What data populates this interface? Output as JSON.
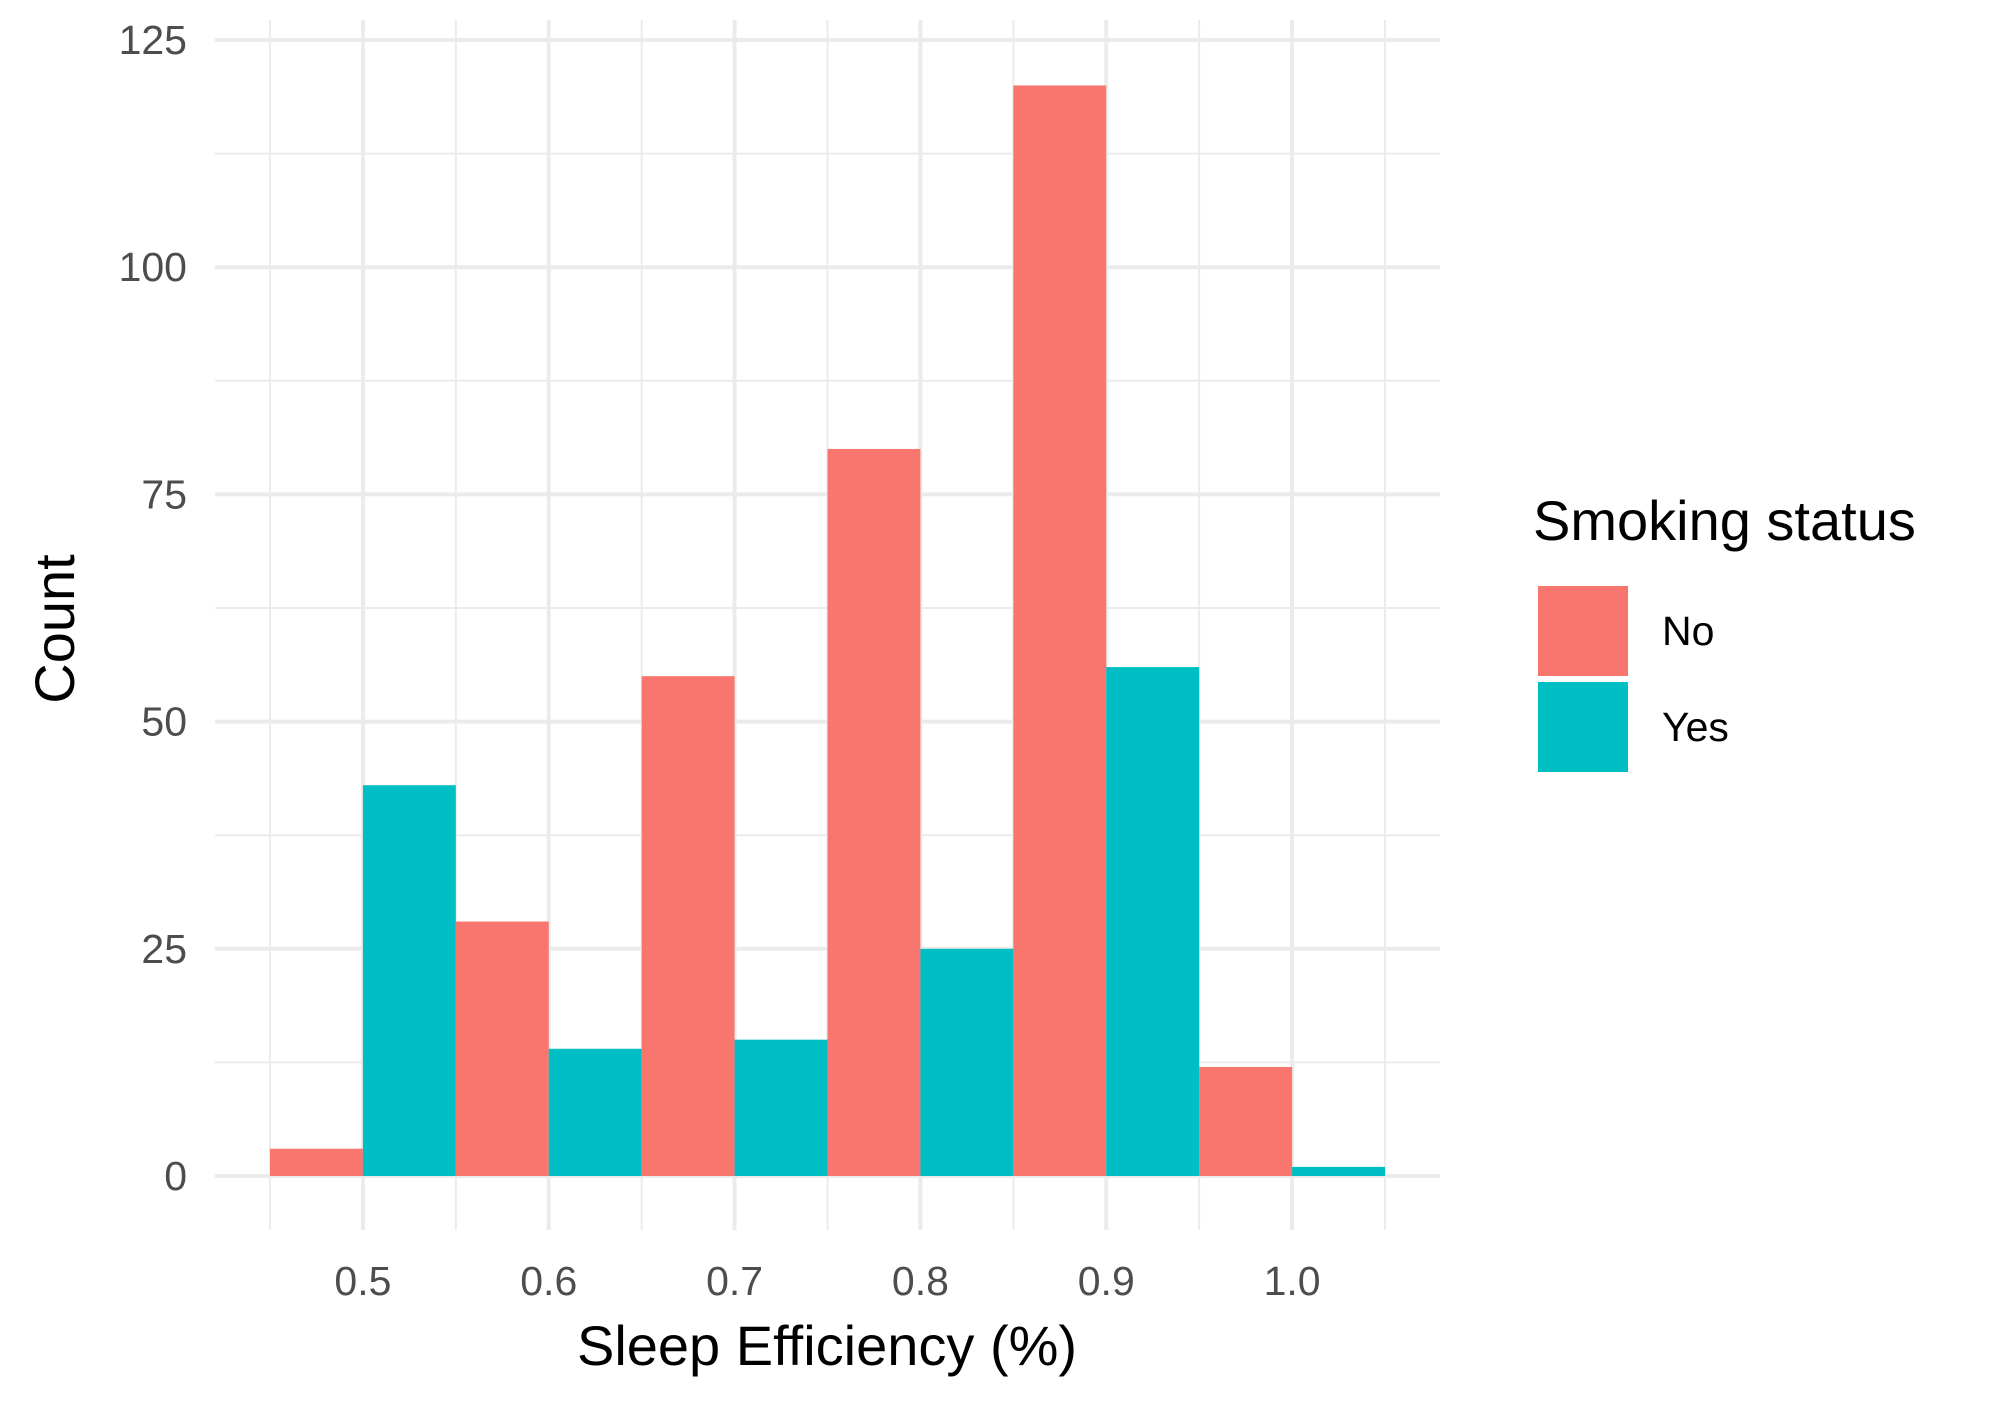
{
  "chart_data": {
    "type": "bar",
    "subtype": "dodged-histogram",
    "title": "",
    "xlabel": "Sleep Efficiency (%)",
    "ylabel": "Count",
    "xlim": [
      0.45,
      1.05
    ],
    "ylim": [
      -5,
      125
    ],
    "x_ticks": [
      "0.5",
      "0.6",
      "0.7",
      "0.8",
      "0.9",
      "1.0"
    ],
    "x_tick_values": [
      0.5,
      0.6,
      0.7,
      0.8,
      0.9,
      1.0
    ],
    "y_ticks": [
      "0",
      "25",
      "50",
      "75",
      "100",
      "125"
    ],
    "y_tick_values": [
      0,
      25,
      50,
      75,
      100,
      125
    ],
    "bin_centers": [
      0.5,
      0.6,
      0.7,
      0.8,
      0.9,
      1.0
    ],
    "bin_width": 0.1,
    "legend": {
      "title": "Smoking status",
      "position": "right"
    },
    "grid": true,
    "series": [
      {
        "name": "No",
        "color": "#F8766D",
        "values": [
          3,
          28,
          55,
          80,
          120,
          12
        ]
      },
      {
        "name": "Yes",
        "color": "#00BFC4",
        "values": [
          43,
          14,
          15,
          25,
          56,
          1
        ]
      }
    ]
  }
}
